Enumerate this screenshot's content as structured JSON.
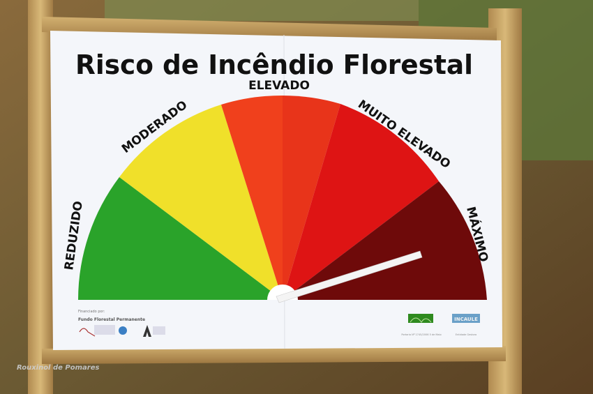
{
  "sign": {
    "title": "Risco de Incêndio Florestal",
    "levels": [
      {
        "label": "REDUZIDO",
        "color": "#2aa32a"
      },
      {
        "label": "MODERADO",
        "color": "#f0e02a"
      },
      {
        "label": "ELEVADO",
        "color": "#ee3a1a"
      },
      {
        "label": "MUITO ELEVADO",
        "color": "#de1414"
      },
      {
        "label": "MÁXIMO",
        "color": "#6e0a0a"
      }
    ],
    "current_level": "MÁXIMO",
    "funded_by": "Financiado por:",
    "fund_name": "Fundo Florestal Permanente",
    "logo_right_1": "INCAULE",
    "footer_small_1": "Portaria Nº 1745/2006 5 de Maio",
    "footer_small_2": "Entidade Gestora"
  },
  "watermark": "Rouxinol de Pomares"
}
